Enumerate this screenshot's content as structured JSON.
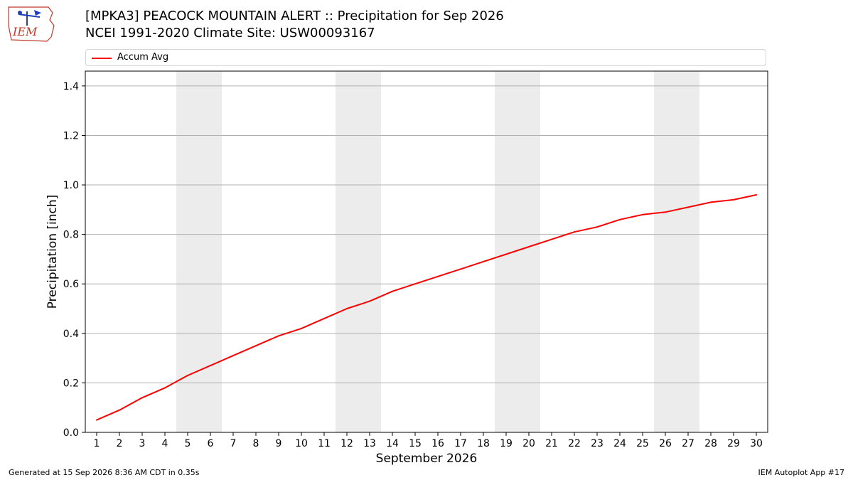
{
  "header": {
    "logo_text": "IEM",
    "title_line1": "[MPKA3] PEACOCK MOUNTAIN ALERT :: Precipitation for Sep 2026",
    "title_line2": "NCEI 1991-2020 Climate Site: USW00093167"
  },
  "footer": {
    "generated": "Generated at 15 Sep 2026 8:36 AM CDT in 0.35s",
    "app": "IEM Autoplot App #17"
  },
  "colors": {
    "line": "#ff0000",
    "weekend_band": "#ececec",
    "grid": "#b0b0b0"
  },
  "chart_data": {
    "type": "line",
    "xlabel": "September 2026",
    "ylabel": "Precipitation [inch]",
    "xlim": [
      0.5,
      30.5
    ],
    "ylim": [
      0,
      1.46
    ],
    "x_ticks": [
      1,
      2,
      3,
      4,
      5,
      6,
      7,
      8,
      9,
      10,
      11,
      12,
      13,
      14,
      15,
      16,
      17,
      18,
      19,
      20,
      21,
      22,
      23,
      24,
      25,
      26,
      27,
      28,
      29,
      30
    ],
    "y_ticks": [
      0.0,
      0.2,
      0.4,
      0.6,
      0.8,
      1.0,
      1.2,
      1.4
    ],
    "y_tick_labels": [
      "0.0",
      "0.2",
      "0.4",
      "0.6",
      "0.8",
      "1.0",
      "1.2",
      "1.4"
    ],
    "grid": "horizontal",
    "legend_position": "top",
    "weekend_bands": [
      [
        5,
        6
      ],
      [
        12,
        13
      ],
      [
        19,
        20
      ],
      [
        26,
        27
      ]
    ],
    "series": [
      {
        "name": "Accum Avg",
        "color": "#ff0000",
        "x": [
          1,
          2,
          3,
          4,
          5,
          6,
          7,
          8,
          9,
          10,
          11,
          12,
          13,
          14,
          15,
          16,
          17,
          18,
          19,
          20,
          21,
          22,
          23,
          24,
          25,
          26,
          27,
          28,
          29,
          30
        ],
        "values": [
          0.05,
          0.09,
          0.14,
          0.18,
          0.23,
          0.27,
          0.31,
          0.35,
          0.39,
          0.42,
          0.46,
          0.5,
          0.53,
          0.57,
          0.6,
          0.63,
          0.66,
          0.69,
          0.72,
          0.75,
          0.78,
          0.81,
          0.83,
          0.86,
          0.88,
          0.89,
          0.91,
          0.93,
          0.94,
          0.96
        ]
      }
    ]
  }
}
